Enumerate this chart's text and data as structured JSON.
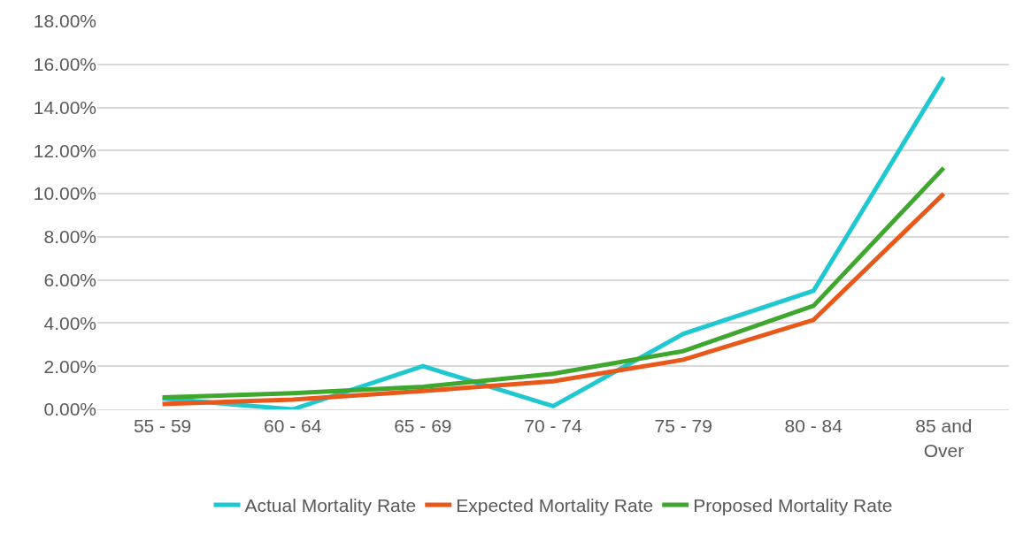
{
  "chart_data": {
    "type": "line",
    "categories": [
      "55 - 59",
      "60 - 64",
      "65 - 69",
      "70 - 74",
      "75 - 79",
      "80 - 84",
      "85 and\nOver"
    ],
    "series": [
      {
        "name": "Actual Mortality Rate",
        "color": "#1fc8d0",
        "values": [
          0.5,
          0.0,
          2.0,
          0.15,
          3.5,
          5.5,
          15.4
        ]
      },
      {
        "name": "Expected Mortality Rate",
        "color": "#e8581a",
        "values": [
          0.25,
          0.45,
          0.85,
          1.3,
          2.3,
          4.15,
          10.0
        ]
      },
      {
        "name": "Proposed Mortality Rate",
        "color": "#3fa62e",
        "values": [
          0.55,
          0.75,
          1.05,
          1.65,
          2.7,
          4.8,
          11.2
        ]
      }
    ],
    "ylim": [
      0,
      18
    ],
    "yticks": [
      {
        "value": 0,
        "label": "0.00%"
      },
      {
        "value": 2,
        "label": "2.00%"
      },
      {
        "value": 4,
        "label": "4.00%"
      },
      {
        "value": 6,
        "label": "6.00%"
      },
      {
        "value": 8,
        "label": "8.00%"
      },
      {
        "value": 10,
        "label": "10.00%"
      },
      {
        "value": 12,
        "label": "12.00%"
      },
      {
        "value": 14,
        "label": "14.00%"
      },
      {
        "value": 16,
        "label": "16.00%"
      },
      {
        "value": 18,
        "label": "18.00%"
      }
    ],
    "grid": "y",
    "legend": "bottom",
    "marker": "none",
    "line_style": "solid"
  }
}
